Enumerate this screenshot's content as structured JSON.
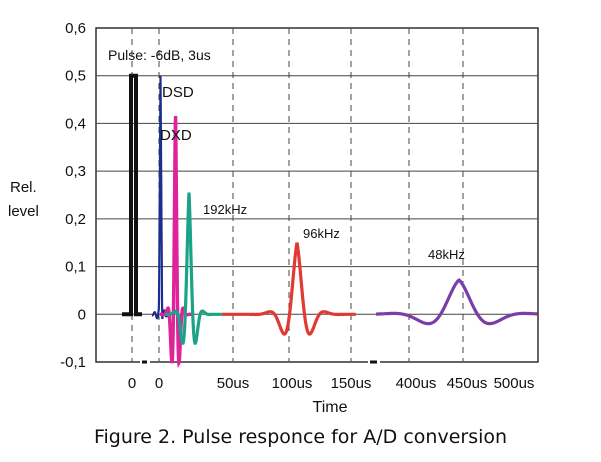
{
  "caption": "Figure 2.  Pulse responce for A/D conversion",
  "chart_data": {
    "type": "line",
    "title": "",
    "ylabel_lines": [
      "Rel.",
      "level"
    ],
    "xlabel": "Time",
    "ylim": [
      -0.1,
      0.6
    ],
    "y_ticks": [
      "-0,1",
      "0",
      "0,1",
      "0,2",
      "0,3",
      "0,4",
      "0,5",
      "0,6"
    ],
    "x_ticks": [
      "0",
      "0",
      "50us",
      "100us",
      "150us",
      "400us",
      "450us",
      "500us"
    ],
    "grid": true,
    "annotations": [
      {
        "text": "Pulse: -6dB, 3us",
        "for": "pulse"
      },
      {
        "text": "DSD",
        "for": "dsd"
      },
      {
        "text": "DXD",
        "for": "dxd"
      },
      {
        "text": "192kHz",
        "for": "k192"
      },
      {
        "text": "96kHz",
        "for": "k96"
      },
      {
        "text": "48kHz",
        "for": "k48"
      }
    ],
    "series": [
      {
        "key": "pulse",
        "color": "#111111",
        "peak": 0.5
      },
      {
        "key": "dsd",
        "color": "#1c2f8f",
        "peak": 0.5
      },
      {
        "key": "dxd",
        "color": "#e0239b",
        "peak": 0.43
      },
      {
        "key": "k192",
        "color": "#1aa386",
        "peak": 0.255
      },
      {
        "key": "k96",
        "color": "#e03a33",
        "peak": 0.15
      },
      {
        "key": "k48",
        "color": "#7b3ea6",
        "peak": 0.072
      }
    ]
  }
}
